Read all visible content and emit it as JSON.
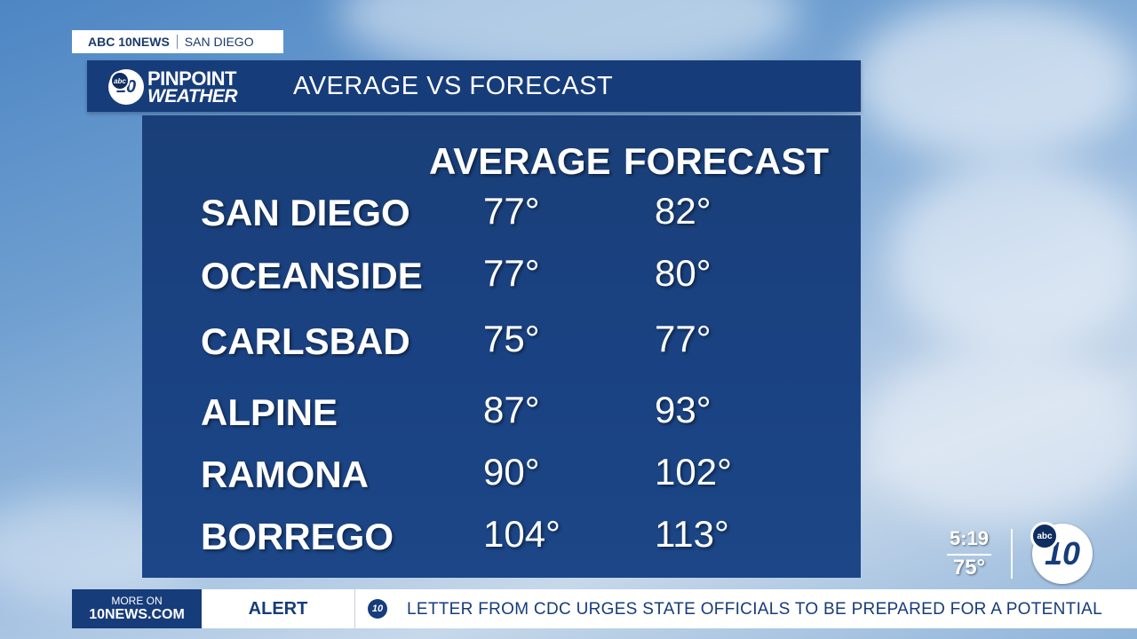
{
  "station": {
    "brand": "ABC 10NEWS",
    "location": "SAN DIEGO"
  },
  "logo": {
    "badge": "abc",
    "number": "10",
    "line1": "PINPOINT",
    "line2": "WEATHER"
  },
  "header": {
    "title": "AVERAGE VS FORECAST"
  },
  "table": {
    "headers": {
      "average": "AVERAGE",
      "forecast": "FORECAST"
    },
    "rows": [
      {
        "city": "SAN DIEGO",
        "average": "77°",
        "forecast": "82°"
      },
      {
        "city": "OCEANSIDE",
        "average": "77°",
        "forecast": "80°"
      },
      {
        "city": "CARLSBAD",
        "average": "75°",
        "forecast": "77°"
      },
      {
        "city": "ALPINE",
        "average": "87°",
        "forecast": "93°"
      },
      {
        "city": "RAMONA",
        "average": "90°",
        "forecast": "102°"
      },
      {
        "city": "BORREGO",
        "average": "104°",
        "forecast": "113°"
      }
    ]
  },
  "status": {
    "time": "5:19",
    "temperature": "75°"
  },
  "corner_logo": {
    "badge": "abc",
    "number": "10"
  },
  "ticker": {
    "more_on_line1": "MORE ON",
    "more_on_line2": "10NEWS.COM",
    "label": "ALERT",
    "icon": "10",
    "headline": "LETTER FROM CDC URGES STATE OFFICIALS TO BE PREPARED FOR A POTENTIAL"
  }
}
